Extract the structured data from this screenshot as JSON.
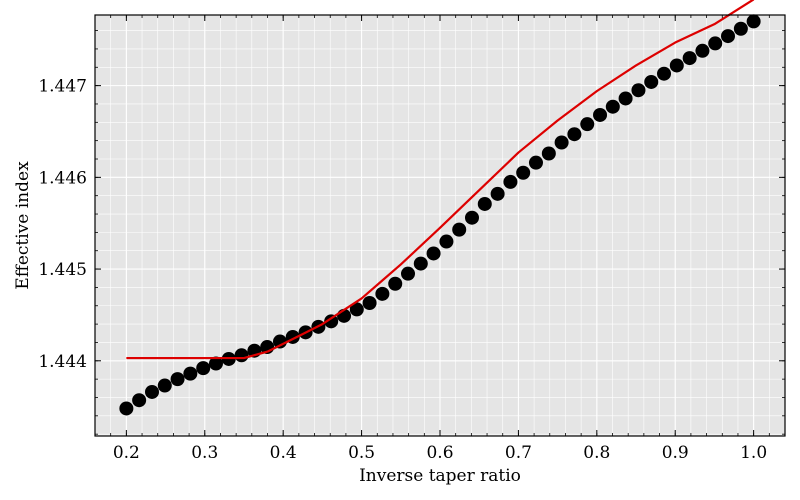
{
  "chart_data": {
    "type": "scatter",
    "title": "",
    "xlabel": "Inverse taper ratio",
    "ylabel": "Effective index",
    "xlim": [
      0.16,
      1.04
    ],
    "ylim": [
      1.44318,
      1.44777
    ],
    "grid": true,
    "x_ticks": [
      0.2,
      0.3,
      0.4,
      0.5,
      0.6,
      0.7,
      0.8,
      0.9,
      1.0
    ],
    "x_tick_labels": [
      "0.2",
      "0.3",
      "0.4",
      "0.5",
      "0.6",
      "0.7",
      "0.8",
      "0.9",
      "1.0"
    ],
    "y_ticks": [
      1.444,
      1.445,
      1.446,
      1.447
    ],
    "y_tick_labels": [
      "1.444",
      "1.445",
      "1.446",
      "1.447"
    ],
    "colors": {
      "background": "#e5e5e5",
      "grid": "#ffffff",
      "points": "#000000",
      "line": "#dd0000"
    },
    "series": [
      {
        "kind": "scatter",
        "x": [
          0.2,
          0.2163,
          0.2327,
          0.249,
          0.2653,
          0.2816,
          0.298,
          0.3143,
          0.3306,
          0.3469,
          0.3633,
          0.3796,
          0.3959,
          0.4122,
          0.4286,
          0.4449,
          0.4612,
          0.4776,
          0.4939,
          0.5102,
          0.5265,
          0.5429,
          0.5592,
          0.5755,
          0.5918,
          0.6082,
          0.6245,
          0.6408,
          0.6571,
          0.6735,
          0.6898,
          0.7061,
          0.7224,
          0.7388,
          0.7551,
          0.7714,
          0.7878,
          0.8041,
          0.8204,
          0.8367,
          0.8531,
          0.8694,
          0.8857,
          0.902,
          0.9184,
          0.9347,
          0.951,
          0.9673,
          0.9837,
          1.0
        ],
        "y": [
          1.44348,
          1.44357,
          1.44366,
          1.44373,
          1.4438,
          1.44386,
          1.44392,
          1.44397,
          1.44402,
          1.44406,
          1.44411,
          1.44415,
          1.44421,
          1.44426,
          1.44431,
          1.44437,
          1.44443,
          1.44449,
          1.44456,
          1.44463,
          1.44473,
          1.44484,
          1.44495,
          1.44506,
          1.44517,
          1.4453,
          1.44543,
          1.44556,
          1.44571,
          1.44582,
          1.44595,
          1.44605,
          1.44616,
          1.44626,
          1.44638,
          1.44647,
          1.44658,
          1.44668,
          1.44677,
          1.44686,
          1.44695,
          1.44704,
          1.44713,
          1.44722,
          1.4473,
          1.44738,
          1.44746,
          1.44754,
          1.44762,
          1.4477
        ]
      },
      {
        "kind": "line",
        "x": [
          0.2,
          0.25,
          0.3,
          0.35,
          0.38,
          0.42,
          0.45,
          0.5,
          0.55,
          0.6,
          0.65,
          0.7,
          0.75,
          0.8,
          0.85,
          0.9,
          0.95,
          1.0
        ],
        "y": [
          1.44403,
          1.44403,
          1.44403,
          1.44403,
          1.4441,
          1.44427,
          1.4444,
          1.44468,
          1.44505,
          1.44545,
          1.44586,
          1.44627,
          1.44662,
          1.44694,
          1.44722,
          1.44747,
          1.44767,
          1.44794
        ]
      }
    ]
  }
}
